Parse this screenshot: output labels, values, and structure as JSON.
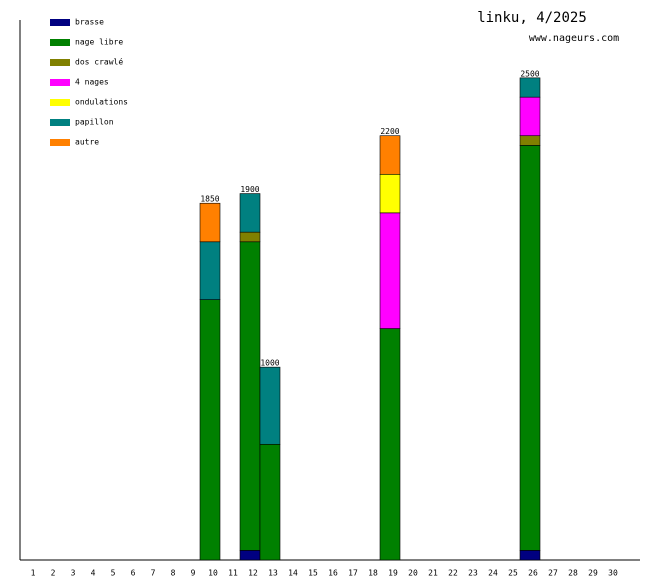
{
  "chart_data": {
    "type": "stacked_bar",
    "title": "linku, 4/2025",
    "subtitle": "www.nageurs.com",
    "categories": [
      "1",
      "2",
      "3",
      "4",
      "5",
      "6",
      "7",
      "8",
      "9",
      "10",
      "11",
      "12",
      "13",
      "14",
      "15",
      "16",
      "17",
      "18",
      "19",
      "20",
      "21",
      "22",
      "23",
      "24",
      "25",
      "26",
      "27",
      "28",
      "29",
      "30"
    ],
    "ylim": [
      0,
      2800
    ],
    "legend": "top-left",
    "series": [
      {
        "name": "brasse",
        "color": "#000080",
        "values": [
          null,
          null,
          null,
          null,
          null,
          null,
          null,
          null,
          null,
          null,
          null,
          50,
          null,
          null,
          null,
          null,
          null,
          null,
          null,
          null,
          null,
          null,
          null,
          null,
          null,
          50,
          null,
          null,
          null,
          null
        ]
      },
      {
        "name": "nage libre",
        "color": "#008000",
        "values": [
          null,
          null,
          null,
          null,
          null,
          null,
          null,
          null,
          null,
          1350,
          null,
          1600,
          600,
          null,
          null,
          null,
          null,
          null,
          1200,
          null,
          null,
          null,
          null,
          null,
          null,
          2100,
          null,
          null,
          null,
          null
        ]
      },
      {
        "name": "dos crawlé",
        "color": "#808000",
        "values": [
          null,
          null,
          null,
          null,
          null,
          null,
          null,
          null,
          null,
          null,
          null,
          50,
          null,
          null,
          null,
          null,
          null,
          null,
          null,
          null,
          null,
          null,
          null,
          null,
          null,
          50,
          null,
          null,
          null,
          null
        ]
      },
      {
        "name": "4 nages",
        "color": "#ff00ff",
        "values": [
          null,
          null,
          null,
          null,
          null,
          null,
          null,
          null,
          null,
          null,
          null,
          null,
          null,
          null,
          null,
          null,
          null,
          null,
          600,
          null,
          null,
          null,
          null,
          null,
          null,
          200,
          null,
          null,
          null,
          null
        ]
      },
      {
        "name": "ondulations",
        "color": "#ffff00",
        "values": [
          null,
          null,
          null,
          null,
          null,
          null,
          null,
          null,
          null,
          null,
          null,
          null,
          null,
          null,
          null,
          null,
          null,
          null,
          200,
          null,
          null,
          null,
          null,
          null,
          null,
          null,
          null,
          null,
          null,
          null
        ]
      },
      {
        "name": "papillon",
        "color": "#008080",
        "values": [
          null,
          null,
          null,
          null,
          null,
          null,
          null,
          null,
          null,
          300,
          null,
          200,
          400,
          null,
          null,
          null,
          null,
          null,
          null,
          null,
          null,
          null,
          null,
          null,
          null,
          100,
          null,
          null,
          null,
          null
        ]
      },
      {
        "name": "autre",
        "color": "#ff8000",
        "values": [
          null,
          null,
          null,
          null,
          null,
          null,
          null,
          null,
          null,
          200,
          null,
          null,
          null,
          null,
          null,
          null,
          null,
          null,
          200,
          null,
          null,
          null,
          null,
          null,
          null,
          null,
          null,
          null,
          null,
          null
        ]
      }
    ],
    "totals": [
      null,
      null,
      null,
      null,
      null,
      null,
      null,
      null,
      null,
      1850,
      null,
      1900,
      1000,
      null,
      null,
      null,
      null,
      null,
      2200,
      null,
      null,
      null,
      null,
      null,
      null,
      2500,
      null,
      null,
      null,
      null
    ]
  }
}
